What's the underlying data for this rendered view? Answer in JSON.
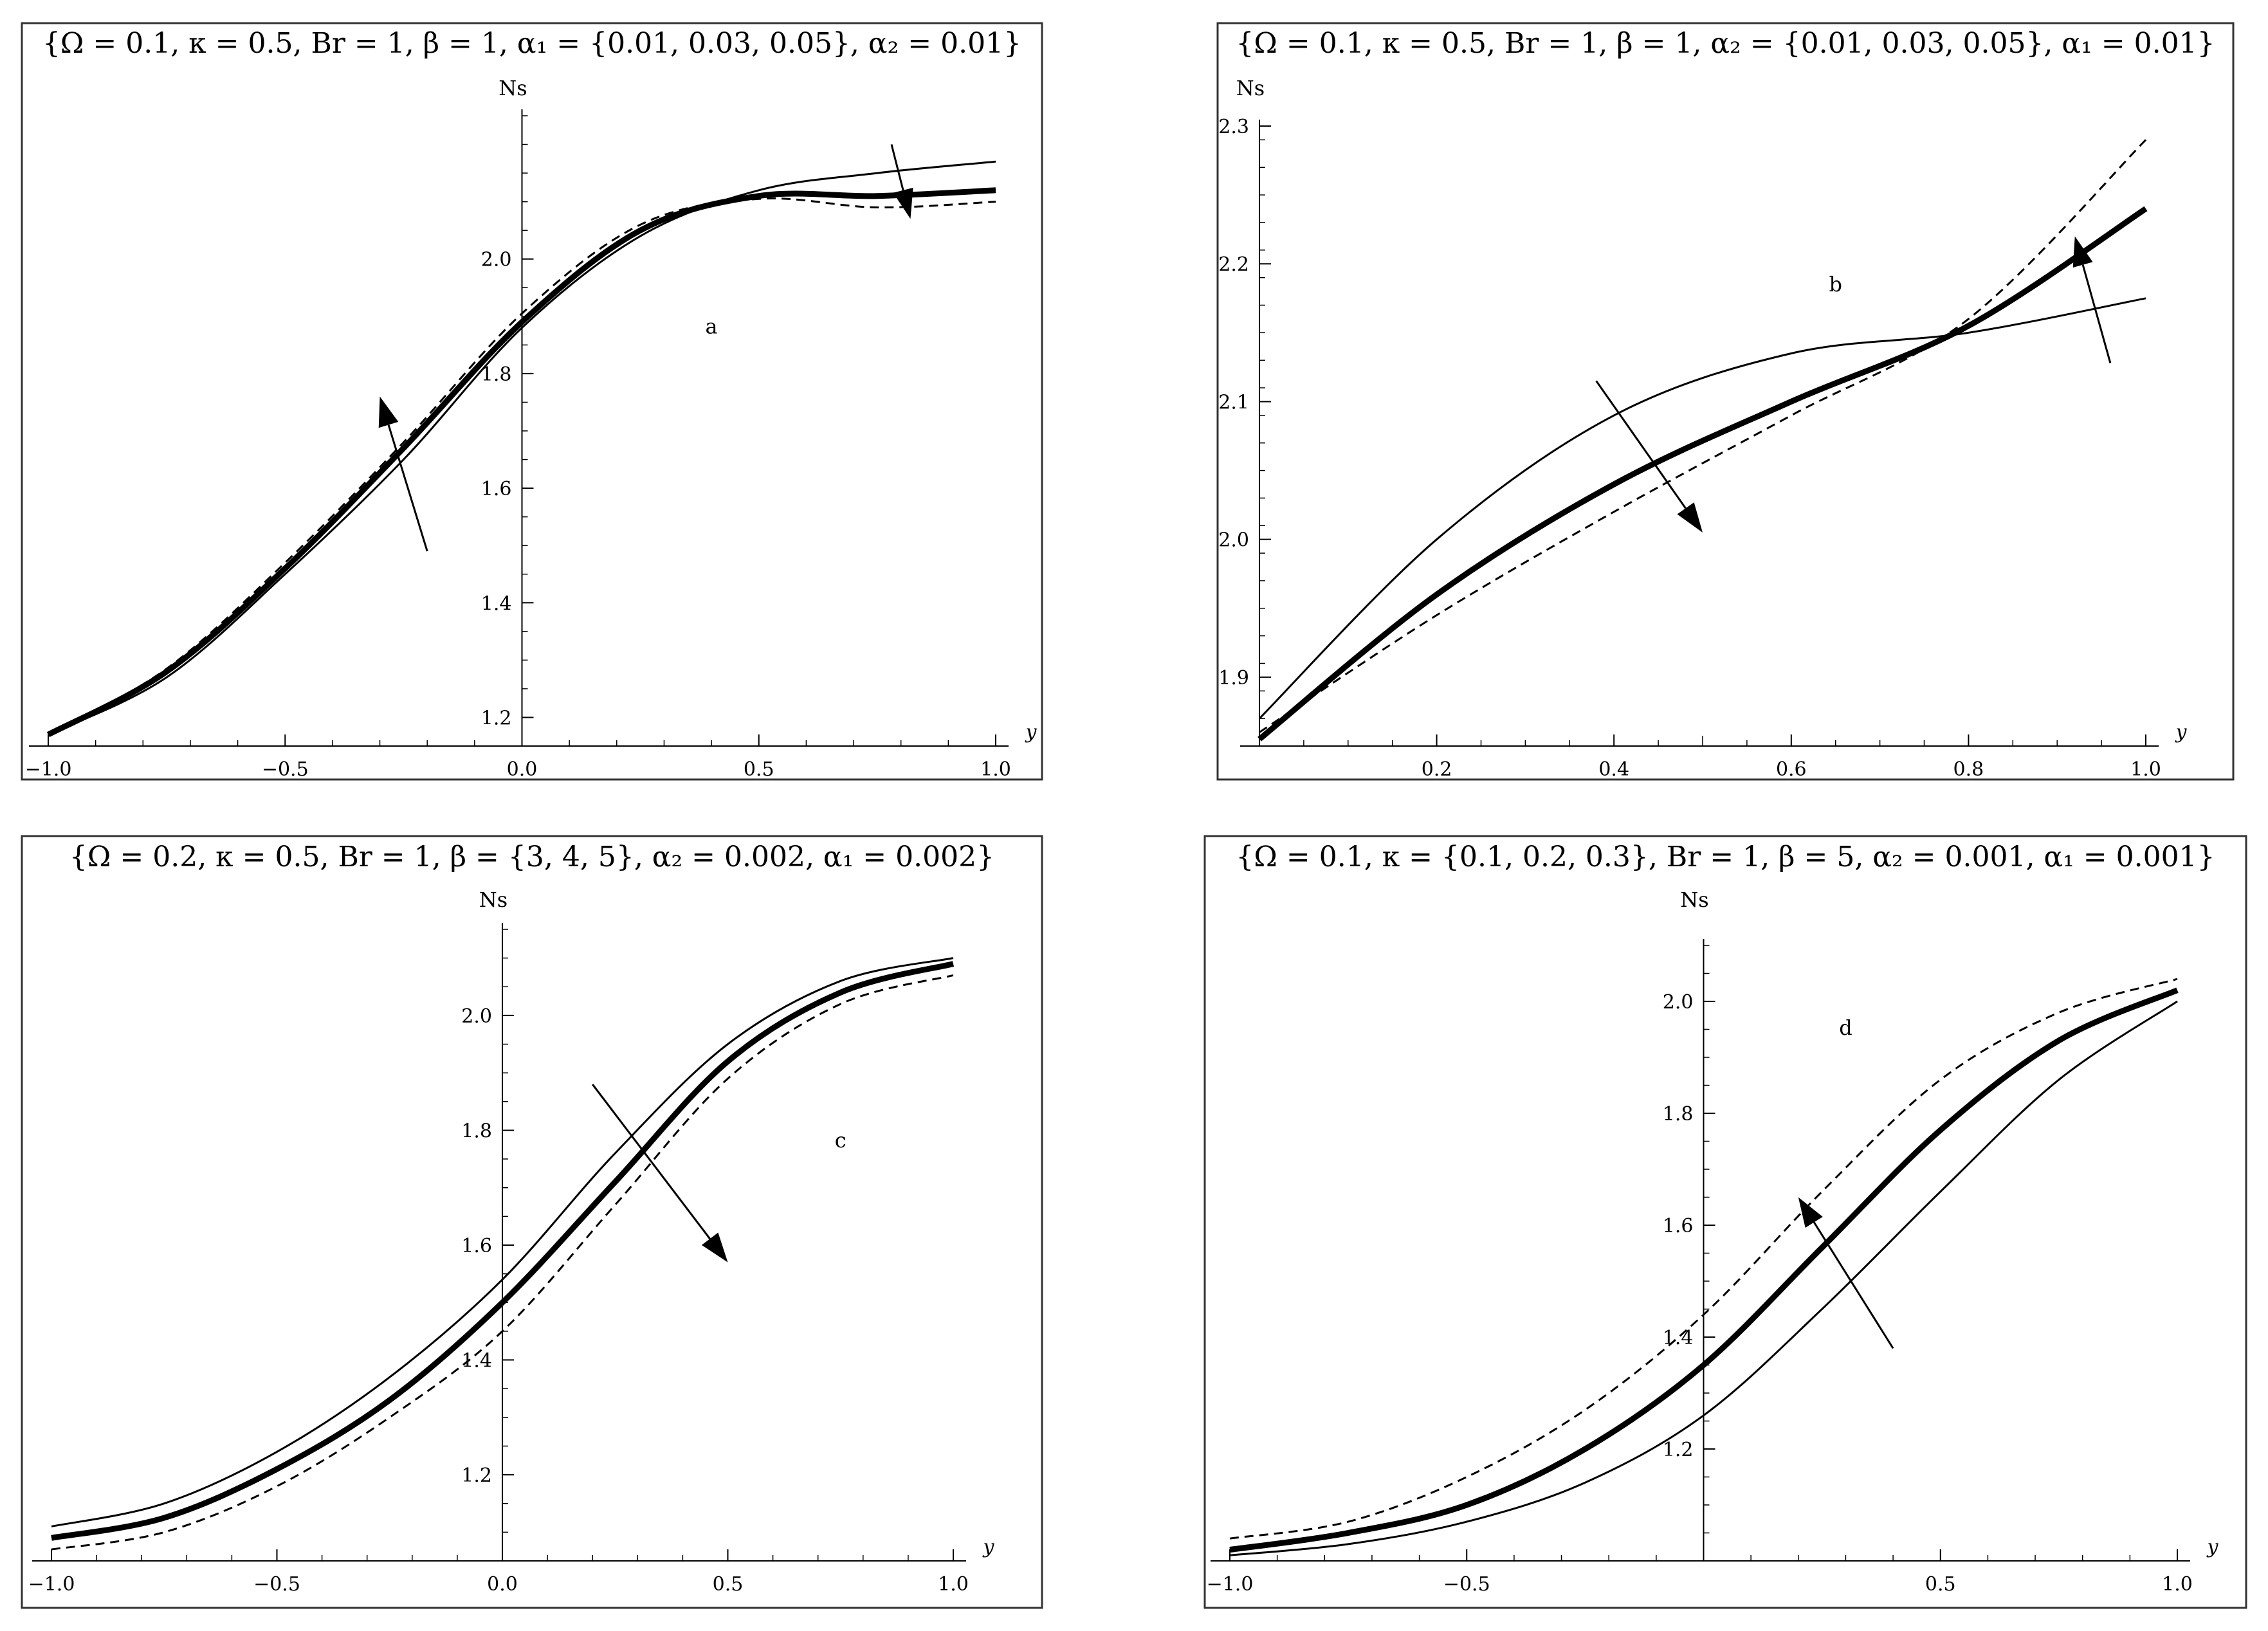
{
  "chart_data": [
    {
      "type": "line",
      "title": "{Ω = 0.1, κ = 0.5, Br = 1, β = 1, α₁ = {0.01, 0.03, 0.05}, α₂ = 0.01}",
      "panel_label": "a",
      "xlabel": "y",
      "ylabel": "Ns",
      "xlim": [
        -1.0,
        1.0
      ],
      "ylim": [
        1.15,
        2.25
      ],
      "x_ticks": [
        "-1.0",
        "-0.5",
        "0.0",
        "0.5",
        "1.0"
      ],
      "y_ticks": [
        "1.2",
        "1.4",
        "1.6",
        "1.8",
        "2.0"
      ],
      "arrows": [
        {
          "from": [
            -0.2,
            1.49
          ],
          "to": [
            -0.3,
            1.76
          ]
        },
        {
          "from": [
            0.78,
            2.2
          ],
          "to": [
            0.82,
            2.07
          ]
        }
      ],
      "series": [
        {
          "style": "thin",
          "x": [
            -1.0,
            -0.75,
            -0.5,
            -0.25,
            0.0,
            0.25,
            0.5,
            0.75,
            1.0
          ],
          "y": [
            1.17,
            1.27,
            1.45,
            1.65,
            1.88,
            2.04,
            2.12,
            2.15,
            2.17
          ]
        },
        {
          "style": "thick",
          "x": [
            -1.0,
            -0.75,
            -0.5,
            -0.25,
            0.0,
            0.25,
            0.5,
            0.75,
            1.0
          ],
          "y": [
            1.17,
            1.28,
            1.46,
            1.67,
            1.89,
            2.05,
            2.11,
            2.11,
            2.12
          ]
        },
        {
          "style": "dashed",
          "x": [
            -1.0,
            -0.75,
            -0.5,
            -0.25,
            0.0,
            0.25,
            0.5,
            0.75,
            1.0
          ],
          "y": [
            1.17,
            1.285,
            1.47,
            1.68,
            1.905,
            2.06,
            2.105,
            2.09,
            2.1
          ]
        }
      ]
    },
    {
      "type": "line",
      "title": "{Ω = 0.1, κ = 0.5, Br = 1, β = 1, α₂ = {0.01, 0.03, 0.05}, α₁ = 0.01}",
      "panel_label": "b",
      "xlabel": "y",
      "ylabel": "Ns",
      "xlim": [
        0.0,
        1.0
      ],
      "ylim": [
        1.85,
        2.3
      ],
      "x_ticks": [
        "0.2",
        "0.4",
        "0.6",
        "0.8",
        "1.0"
      ],
      "y_ticks": [
        "1.9",
        "2.0",
        "2.1",
        "2.2",
        "2.3"
      ],
      "arrows": [
        {
          "from": [
            0.38,
            2.115
          ],
          "to": [
            0.5,
            2.005
          ]
        },
        {
          "from": [
            0.96,
            2.128
          ],
          "to": [
            0.92,
            2.22
          ]
        }
      ],
      "series": [
        {
          "style": "thin",
          "x": [
            0.0,
            0.2,
            0.4,
            0.6,
            0.8,
            1.0
          ],
          "y": [
            1.87,
            2.0,
            2.09,
            2.135,
            2.15,
            2.175
          ]
        },
        {
          "style": "thick",
          "x": [
            0.0,
            0.2,
            0.4,
            0.6,
            0.8,
            1.0
          ],
          "y": [
            1.855,
            1.96,
            2.04,
            2.1,
            2.155,
            2.24
          ]
        },
        {
          "style": "dashed",
          "x": [
            0.0,
            0.2,
            0.4,
            0.6,
            0.8,
            1.0
          ],
          "y": [
            1.86,
            1.945,
            2.02,
            2.09,
            2.16,
            2.29
          ]
        }
      ]
    },
    {
      "type": "line",
      "title": "{Ω = 0.2, κ = 0.5, Br = 1, β = {3, 4, 5}, α₂ = 0.002, α₁ = 0.002}",
      "panel_label": "c",
      "xlabel": "y",
      "ylabel": "Ns",
      "xlim": [
        -1.0,
        1.0
      ],
      "ylim": [
        1.05,
        2.15
      ],
      "x_ticks": [
        "-1.0",
        "-0.5",
        "0.0",
        "0.5",
        "1.0"
      ],
      "y_ticks": [
        "1.2",
        "1.4",
        "1.6",
        "1.8",
        "2.0"
      ],
      "arrows": [
        {
          "from": [
            0.2,
            1.88
          ],
          "to": [
            0.5,
            1.57
          ]
        }
      ],
      "series": [
        {
          "style": "thin",
          "x": [
            -1.0,
            -0.75,
            -0.5,
            -0.25,
            0.0,
            0.25,
            0.5,
            0.75,
            1.0
          ],
          "y": [
            1.11,
            1.15,
            1.24,
            1.37,
            1.54,
            1.76,
            1.95,
            2.06,
            2.1
          ]
        },
        {
          "style": "thick",
          "x": [
            -1.0,
            -0.75,
            -0.5,
            -0.25,
            0.0,
            0.25,
            0.5,
            0.75,
            1.0
          ],
          "y": [
            1.09,
            1.125,
            1.21,
            1.33,
            1.5,
            1.71,
            1.92,
            2.04,
            2.09
          ]
        },
        {
          "style": "dashed",
          "x": [
            -1.0,
            -0.75,
            -0.5,
            -0.25,
            0.0,
            0.25,
            0.5,
            0.75,
            1.0
          ],
          "y": [
            1.07,
            1.1,
            1.18,
            1.3,
            1.45,
            1.67,
            1.89,
            2.02,
            2.07
          ]
        }
      ]
    },
    {
      "type": "line",
      "title": "{Ω = 0.1, κ = {0.1, 0.2, 0.3}, Br = 1, β = 5, α₂ = 0.001, α₁ = 0.001}",
      "panel_label": "d",
      "xlabel": "y",
      "ylabel": "Ns",
      "xlim": [
        -1.0,
        1.0
      ],
      "ylim": [
        1.0,
        2.1
      ],
      "x_ticks": [
        "-1.0",
        "-0.5",
        "0.5",
        "1.0"
      ],
      "y_ticks": [
        "1.2",
        "1.4",
        "1.6",
        "1.8",
        "2.0"
      ],
      "arrows": [
        {
          "from": [
            0.4,
            1.38
          ],
          "to": [
            0.2,
            1.65
          ]
        }
      ],
      "series": [
        {
          "style": "thin",
          "x": [
            -1.0,
            -0.75,
            -0.5,
            -0.25,
            0.0,
            0.25,
            0.5,
            0.75,
            1.0
          ],
          "y": [
            1.01,
            1.03,
            1.07,
            1.14,
            1.26,
            1.45,
            1.66,
            1.86,
            2.0
          ]
        },
        {
          "style": "thick",
          "x": [
            -1.0,
            -0.75,
            -0.5,
            -0.25,
            0.0,
            0.25,
            0.5,
            0.75,
            1.0
          ],
          "y": [
            1.02,
            1.05,
            1.1,
            1.2,
            1.35,
            1.56,
            1.77,
            1.93,
            2.02
          ]
        },
        {
          "style": "dashed",
          "x": [
            -1.0,
            -0.75,
            -0.5,
            -0.25,
            0.0,
            0.25,
            0.5,
            0.75,
            1.0
          ],
          "y": [
            1.04,
            1.07,
            1.15,
            1.27,
            1.44,
            1.66,
            1.86,
            1.98,
            2.04
          ]
        }
      ]
    }
  ]
}
